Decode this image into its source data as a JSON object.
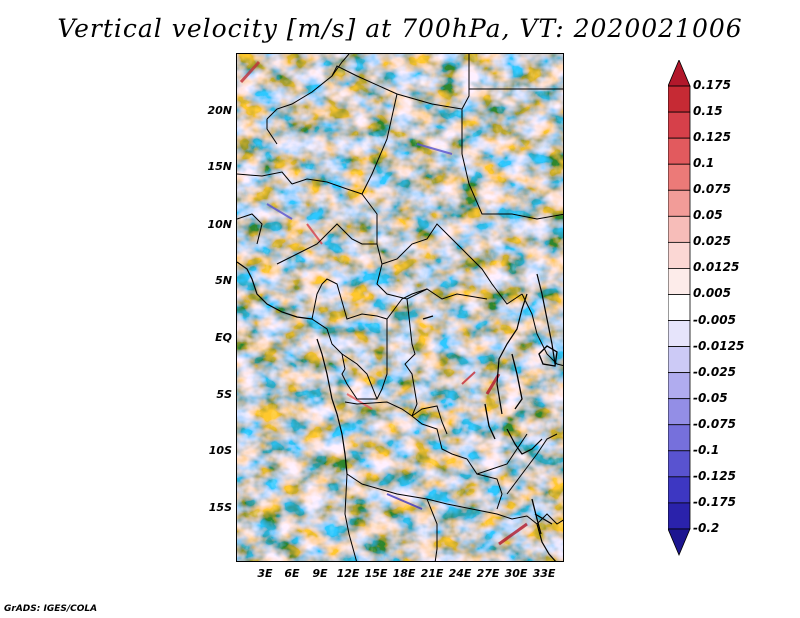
{
  "title": "Vertical velocity [m/s] at 700hPa, VT: 2020021006",
  "map": {
    "lat_labels": [
      "20N",
      "15N",
      "10N",
      "5N",
      "EQ",
      "5S",
      "10S",
      "15S"
    ],
    "lon_labels": [
      "3E",
      "6E",
      "9E",
      "12E",
      "15E",
      "18E",
      "21E",
      "24E",
      "27E",
      "30E",
      "33E"
    ]
  },
  "colorbar": {
    "labels": [
      "0.175",
      "0.15",
      "0.125",
      "0.1",
      "0.075",
      "0.05",
      "0.025",
      "0.0125",
      "0.005",
      "-0.005",
      "-0.0125",
      "-0.025",
      "-0.05",
      "-0.075",
      "-0.1",
      "-0.125",
      "-0.175",
      "-0.2"
    ],
    "colors": [
      "#b2182b",
      "#c62a34",
      "#d6404a",
      "#e25a5e",
      "#ec7a78",
      "#f29c98",
      "#f7bdb9",
      "#fbd7d4",
      "#fdecea",
      "#ffffff",
      "#e6e4fb",
      "#cccaf6",
      "#b0acef",
      "#938ee6",
      "#7670dc",
      "#5953d0",
      "#3d37c2",
      "#2a22ab",
      "#1c1590"
    ]
  },
  "credit": "GrADS: IGES/COLA"
}
